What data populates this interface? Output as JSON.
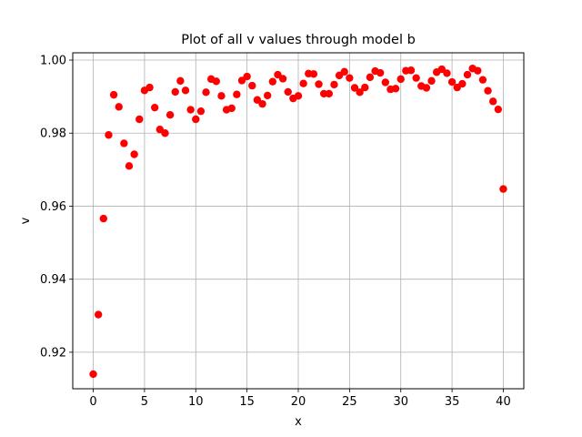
{
  "chart_data": {
    "type": "scatter",
    "title": "Plot of all v values through model b",
    "xlabel": "x",
    "ylabel": "v",
    "xlim": [
      -2,
      42
    ],
    "ylim": [
      0.91,
      1.002
    ],
    "xticks": [
      0,
      5,
      10,
      15,
      20,
      25,
      30,
      35,
      40
    ],
    "yticks": [
      0.92,
      0.94,
      0.96,
      0.98,
      1.0
    ],
    "xtick_labels": [
      "0",
      "5",
      "10",
      "15",
      "20",
      "25",
      "30",
      "35",
      "40"
    ],
    "ytick_labels": [
      "0.92",
      "0.94",
      "0.96",
      "0.98",
      "1.00"
    ],
    "grid": true,
    "marker_color": "#ff0000",
    "series": [
      {
        "x": [
          0,
          0.5,
          1,
          1.5,
          2,
          2.5,
          3,
          3.5,
          4,
          4.5,
          5,
          5.5,
          6,
          6.5,
          7,
          7.5,
          8,
          8.5,
          9,
          9.5,
          10,
          10.5,
          11,
          11.5,
          12,
          12.5,
          13,
          13.5,
          14,
          14.5,
          15,
          15.5,
          16,
          16.5,
          17,
          17.5,
          18,
          18.5,
          19,
          19.5,
          20,
          20.5,
          21,
          21.5,
          22,
          22.5,
          23,
          23.5,
          24,
          24.5,
          25,
          25.5,
          26,
          26.5,
          27,
          27.5,
          28,
          28.5,
          29,
          29.5,
          30,
          30.5,
          31,
          31.5,
          32,
          32.5,
          33,
          33.5,
          34,
          34.5,
          35,
          35.5,
          36,
          36.5,
          37,
          37.5,
          38,
          38.5,
          39,
          39.5,
          40
        ],
        "y": [
          0.914,
          0.9303,
          0.9566,
          0.9795,
          0.9905,
          0.9872,
          0.9772,
          0.971,
          0.9742,
          0.9838,
          0.9917,
          0.9925,
          0.987,
          0.981,
          0.98,
          0.985,
          0.9913,
          0.9943,
          0.9917,
          0.9864,
          0.9838,
          0.986,
          0.9912,
          0.9948,
          0.9942,
          0.9902,
          0.9864,
          0.9868,
          0.9906,
          0.9944,
          0.9955,
          0.993,
          0.9891,
          0.988,
          0.9903,
          0.9941,
          0.996,
          0.9949,
          0.9913,
          0.9895,
          0.9902,
          0.9936,
          0.9963,
          0.9962,
          0.9934,
          0.9908,
          0.9908,
          0.9933,
          0.9958,
          0.9968,
          0.9951,
          0.9924,
          0.9912,
          0.9925,
          0.9953,
          0.997,
          0.9965,
          0.9939,
          0.992,
          0.9922,
          0.9948,
          0.9971,
          0.9972,
          0.9951,
          0.9929,
          0.9924,
          0.9943,
          0.9967,
          0.9975,
          0.9964,
          0.994,
          0.9925,
          0.9935,
          0.996,
          0.9977,
          0.9971,
          0.9946,
          0.9916,
          0.9887,
          0.9865,
          0.9647
        ]
      }
    ]
  }
}
